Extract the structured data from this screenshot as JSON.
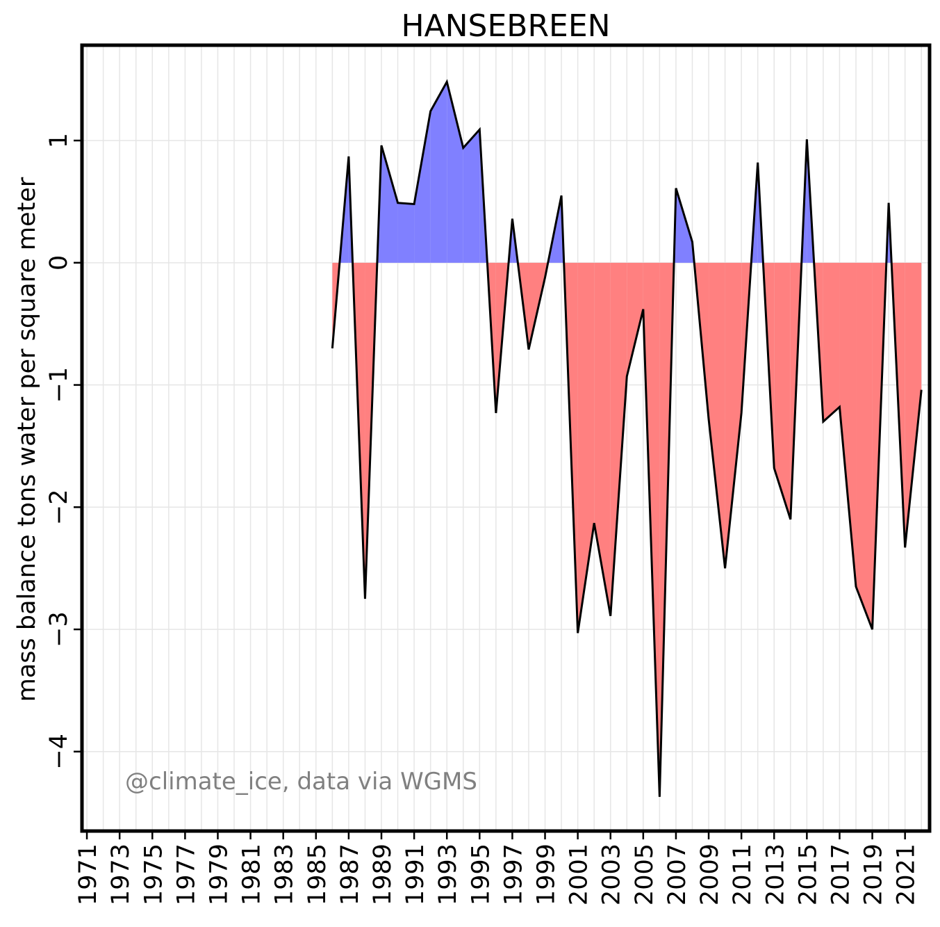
{
  "chart_data": {
    "type": "area",
    "title": "HANSEBREEN",
    "xlabel": "",
    "ylabel": "mass balance tons water per square meter",
    "annotation": "@climate_ice, data via WGMS",
    "xlim": [
      1970.7,
      2022.5
    ],
    "ylim": [
      -4.65,
      1.78
    ],
    "x_ticks": [
      1971,
      1973,
      1975,
      1977,
      1979,
      1981,
      1983,
      1985,
      1987,
      1989,
      1991,
      1993,
      1995,
      1997,
      1999,
      2001,
      2003,
      2005,
      2007,
      2009,
      2011,
      2013,
      2015,
      2017,
      2019,
      2021
    ],
    "y_ticks": [
      -4,
      -3,
      -2,
      -1,
      0,
      1
    ],
    "y_tick_labels": [
      "−4",
      "−3",
      "−2",
      "−1",
      "0",
      "1"
    ],
    "grid": true,
    "colors": {
      "positive": "#8080ff",
      "negative": "#ff8080",
      "line": "#000000",
      "grid": "#e6e6e6",
      "annotation": "#808080"
    },
    "x": [
      1986,
      1987,
      1988,
      1989,
      1990,
      1991,
      1992,
      1993,
      1994,
      1995,
      1996,
      1997,
      1998,
      1999,
      2000,
      2001,
      2002,
      2003,
      2004,
      2005,
      2006,
      2007,
      2008,
      2009,
      2010,
      2011,
      2012,
      2013,
      2014,
      2015,
      2016,
      2017,
      2018,
      2019,
      2020,
      2021,
      2022
    ],
    "values": [
      -0.7,
      0.87,
      -2.75,
      0.96,
      0.49,
      0.48,
      1.24,
      1.48,
      0.94,
      1.09,
      -1.23,
      0.36,
      -0.71,
      -0.12,
      0.55,
      -3.03,
      -2.13,
      -2.89,
      -0.93,
      -0.38,
      -4.37,
      0.61,
      0.17,
      -1.28,
      -2.5,
      -1.23,
      0.82,
      -1.68,
      -2.1,
      1.01,
      -1.3,
      -1.18,
      -2.65,
      -3.0,
      0.49,
      -2.33,
      -1.04
    ]
  }
}
